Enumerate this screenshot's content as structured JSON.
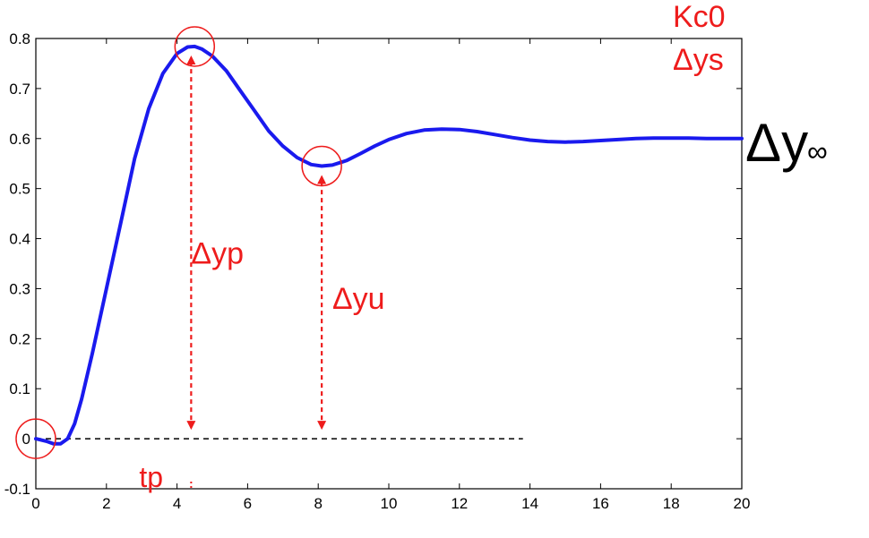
{
  "chart_data": {
    "type": "line",
    "title": "",
    "xlabel": "",
    "ylabel": "",
    "xlim": [
      0,
      20
    ],
    "ylim": [
      -0.1,
      0.8
    ],
    "x_ticks": [
      0,
      2,
      4,
      6,
      8,
      10,
      12,
      14,
      16,
      18,
      20
    ],
    "x_tick_labels": [
      "0",
      "2",
      "4",
      "6",
      "8",
      "10",
      "12",
      "14",
      "16",
      "18",
      "20"
    ],
    "y_ticks": [
      -0.1,
      0,
      0.1,
      0.2,
      0.3,
      0.4,
      0.5,
      0.6,
      0.7,
      0.8
    ],
    "y_tick_labels": [
      "-0.1",
      "0",
      "0.1",
      "0.2",
      "0.3",
      "0.4",
      "0.5",
      "0.6",
      "0.7",
      "0.8"
    ],
    "grid": false,
    "series": [
      {
        "color": "#1a1aee",
        "x": [
          0,
          0.3,
          0.5,
          0.7,
          0.9,
          1.1,
          1.3,
          1.6,
          2.0,
          2.4,
          2.8,
          3.2,
          3.6,
          4.0,
          4.3,
          4.5,
          4.7,
          5.0,
          5.4,
          5.8,
          6.2,
          6.6,
          7.0,
          7.4,
          7.8,
          8.1,
          8.4,
          8.8,
          9.2,
          9.6,
          10.0,
          10.5,
          11.0,
          11.5,
          12.0,
          12.5,
          13.0,
          13.5,
          14.0,
          14.5,
          15.0,
          15.5,
          16.0,
          16.5,
          17.0,
          17.5,
          18.0,
          18.5,
          19.0,
          19.5,
          20.0
        ],
        "y": [
          0,
          -0.005,
          -0.01,
          -0.01,
          0.0,
          0.03,
          0.08,
          0.17,
          0.3,
          0.43,
          0.56,
          0.66,
          0.73,
          0.77,
          0.783,
          0.784,
          0.779,
          0.765,
          0.735,
          0.695,
          0.655,
          0.615,
          0.585,
          0.562,
          0.548,
          0.545,
          0.547,
          0.556,
          0.57,
          0.585,
          0.598,
          0.61,
          0.617,
          0.619,
          0.618,
          0.614,
          0.608,
          0.602,
          0.597,
          0.594,
          0.593,
          0.594,
          0.596,
          0.598,
          0.6,
          0.601,
          0.601,
          0.601,
          0.6,
          0.6,
          0.6
        ]
      }
    ],
    "baseline": {
      "y": 0,
      "x_start": 0,
      "x_end": 13.8,
      "style": "dashed",
      "color": "#000000"
    },
    "markers": [
      {
        "name": "origin",
        "x": 0,
        "y": 0
      },
      {
        "name": "peak",
        "x": 4.5,
        "y": 0.784
      },
      {
        "name": "undershoot",
        "x": 8.1,
        "y": 0.545
      }
    ],
    "arrows": [
      {
        "name": "dyp",
        "x": 4.4,
        "y_from": 0,
        "y_to": 0.784,
        "label": "Δyp",
        "label_x": 4.4,
        "label_y": 0.35
      },
      {
        "name": "dyu",
        "x": 8.1,
        "y_from": 0,
        "y_to": 0.545,
        "label": "Δyu",
        "label_x": 8.4,
        "label_y": 0.26
      }
    ],
    "tp_marker": {
      "label": "tp",
      "x": 4.4
    },
    "annotations": {
      "kc0": "Kc0",
      "dys": "Δys",
      "dy_inf": "Δy",
      "dy_inf_sub": "∞"
    },
    "colors": {
      "curve": "#1a1aee",
      "annotation": "#ee1c1c",
      "axis": "#000000"
    }
  }
}
